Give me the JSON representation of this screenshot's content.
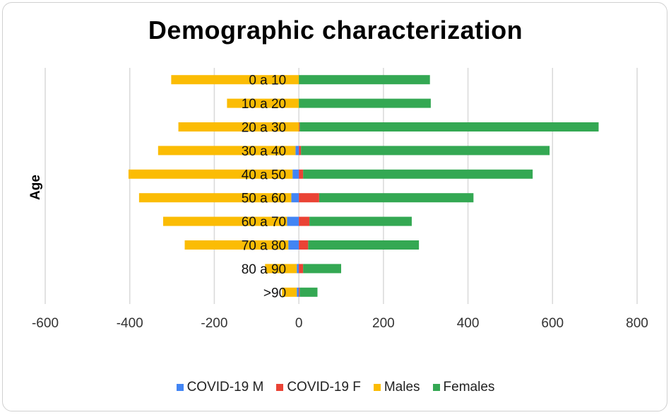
{
  "chart_data": {
    "type": "bar",
    "orientation": "horizontal",
    "stacked": true,
    "title": "Demographic characterization",
    "ylabel": "Age",
    "xlabel": "",
    "xlim": [
      -600,
      800
    ],
    "xticks": [
      -600,
      -400,
      -200,
      0,
      200,
      400,
      600,
      800
    ],
    "grid": "vertical",
    "legend_position": "bottom",
    "categories": [
      "0 a 10",
      "10 a 20",
      "20 a 30",
      "30 a 40",
      "40 a 50",
      "50 a 60",
      "60 a 70",
      "70 a 80",
      "80 a 90",
      ">90"
    ],
    "series": [
      {
        "name": "COVID-19 M",
        "color": "#4285f4",
        "values": [
          0,
          0,
          0,
          -8,
          -15,
          -18,
          -28,
          -25,
          -5,
          -5
        ]
      },
      {
        "name": "COVID-19 F",
        "color": "#ea4335",
        "values": [
          0,
          0,
          2,
          5,
          10,
          48,
          25,
          22,
          10,
          2
        ]
      },
      {
        "name": "Males",
        "color": "#fbbc04",
        "values": [
          -302,
          -170,
          -285,
          -325,
          -388,
          -360,
          -293,
          -245,
          -75,
          -35
        ]
      },
      {
        "name": "Females",
        "color": "#34a853",
        "values": [
          310,
          312,
          707,
          588,
          543,
          365,
          242,
          262,
          90,
          42
        ]
      }
    ]
  }
}
